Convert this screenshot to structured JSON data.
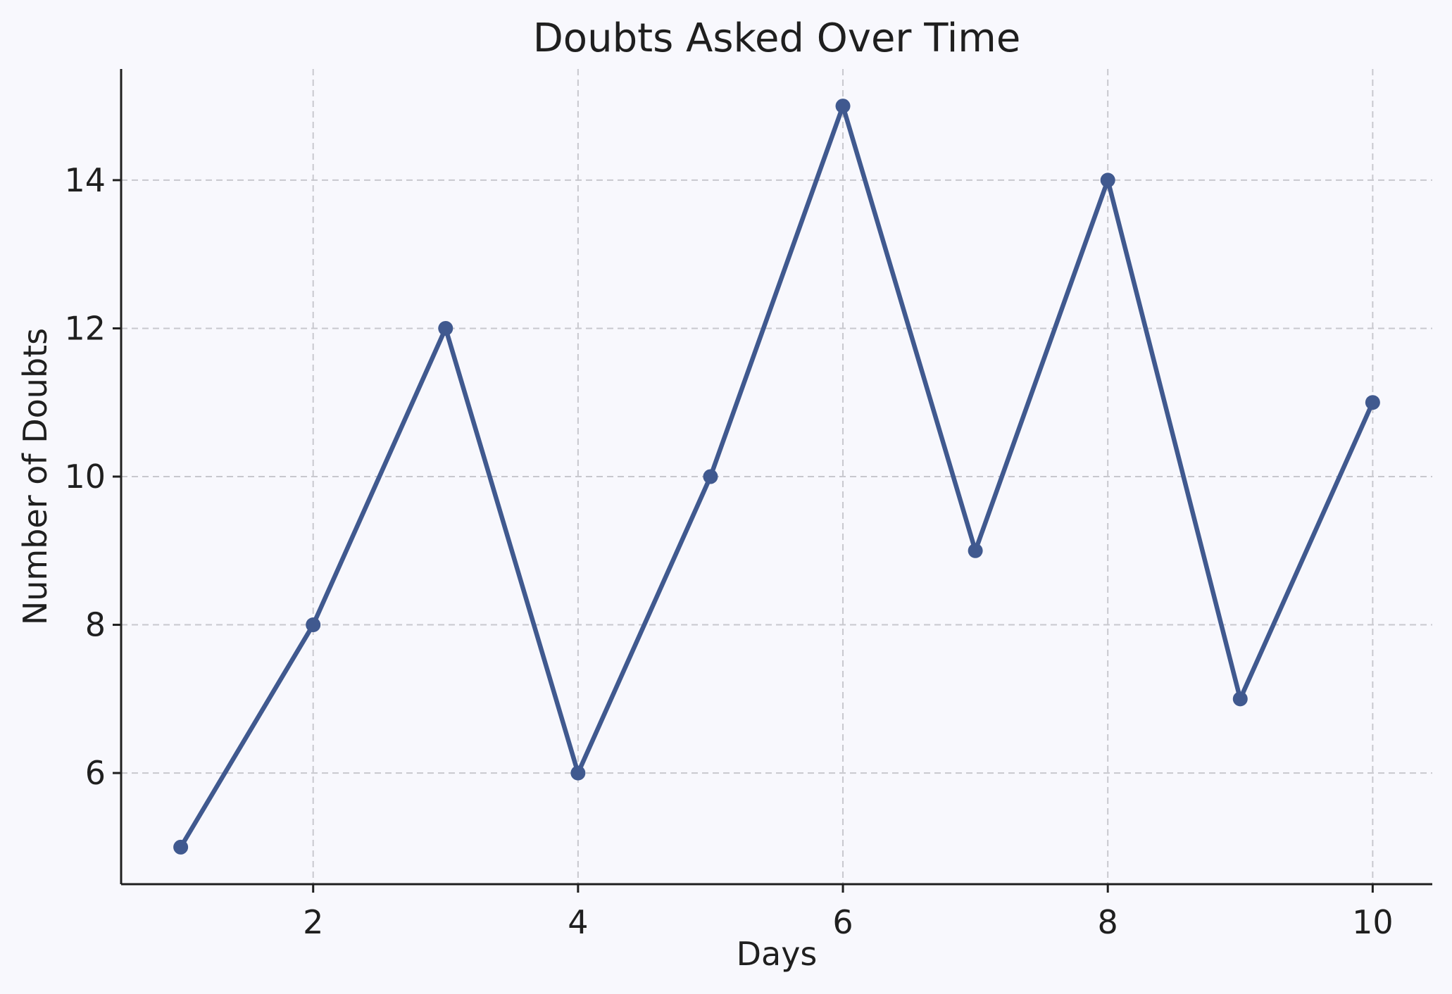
{
  "chart_data": {
    "type": "line",
    "title": "Doubts Asked Over Time",
    "xlabel": "Days",
    "ylabel": "Number of Doubts",
    "x": [
      1,
      2,
      3,
      4,
      5,
      6,
      7,
      8,
      9,
      10
    ],
    "series": [
      {
        "values": [
          5,
          8,
          12,
          6,
          10,
          15,
          9,
          14,
          7,
          11
        ],
        "color": "#40598f",
        "marker": "circle"
      }
    ],
    "xlim": [
      0.55,
      10.45
    ],
    "ylim": [
      4.5,
      15.5
    ],
    "xticks": [
      2,
      4,
      6,
      8,
      10
    ],
    "yticks": [
      6,
      8,
      10,
      12,
      14
    ],
    "grid": true,
    "background": "#f8f8fd"
  }
}
